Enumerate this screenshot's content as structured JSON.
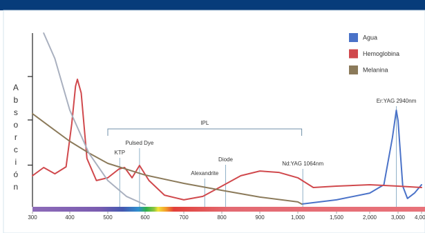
{
  "chart_data": {
    "type": "line",
    "y_label": "Absorción",
    "xticks": [
      300,
      400,
      500,
      600,
      700,
      800,
      900,
      {
        "value": 1000,
        "label": "1,000"
      },
      {
        "value": 1500,
        "label": "1,500"
      },
      {
        "value": 2000,
        "label": "2,000"
      },
      {
        "value": 3000,
        "label": "3,000"
      },
      {
        "value": 4000,
        "label": "4,000"
      }
    ],
    "xlim": [
      300,
      4000
    ],
    "ylim": [
      0,
      100
    ],
    "yticks": [
      24,
      50,
      75
    ],
    "legend": "top-right",
    "series": [
      {
        "name": "Agua",
        "color": "#4a72c8",
        "x": [
          1050,
          1500,
          2000,
          2500,
          2800,
          2940,
          3000,
          3200,
          3400,
          3700,
          4000
        ],
        "values": [
          1.6,
          4,
          7.9,
          12.7,
          39.7,
          55.6,
          49.6,
          11.9,
          4.8,
          7.9,
          12.7
        ]
      },
      {
        "name": "Hemoglobina",
        "color": "#d0484c",
        "x": [
          300,
          330,
          360,
          390,
          405,
          415,
          420,
          430,
          445,
          470,
          500,
          530,
          545,
          565,
          585,
          610,
          650,
          700,
          750,
          800,
          850,
          900,
          950,
          1000,
          1200,
          1500,
          2000,
          2500,
          3000,
          4000
        ],
        "values": [
          17.9,
          22.6,
          19,
          23,
          47.6,
          69.4,
          73.4,
          65.5,
          27.8,
          15.1,
          16.7,
          21.8,
          22.6,
          16.7,
          23.8,
          15.1,
          6.7,
          4,
          6,
          11.9,
          17.9,
          20.6,
          19.8,
          16.7,
          11.1,
          11.9,
          12.7,
          12.3,
          11.9,
          11.1
        ]
      },
      {
        "name": "Melanina",
        "color": "#8b7a5a",
        "x": [
          300,
          350,
          400,
          450,
          500,
          600,
          700,
          800,
          900,
          1000,
          1050
        ],
        "values": [
          53.6,
          45.6,
          37.7,
          31,
          25,
          18.3,
          13.5,
          9.5,
          5.6,
          2.8,
          1.6
        ]
      },
      {
        "color": "#a9b0bf",
        "x": [
          330,
          360,
          400,
          450,
          500,
          550,
          600
        ],
        "values": [
          100,
          85.3,
          55.6,
          31,
          15.1,
          6,
          1.2
        ]
      }
    ],
    "ipl": {
      "label": "IPL",
      "range": [
        500,
        1050
      ]
    },
    "annotations": [
      {
        "text": "KTP",
        "x": 532
      },
      {
        "text": "Pulsed Dye",
        "x": 585
      },
      {
        "text": "Alexandrite",
        "x": 755
      },
      {
        "text": "Diode",
        "x": 810
      },
      {
        "text": "Nd:YAG 1064nm",
        "x": 1064
      },
      {
        "text": "Er:YAG 2940nm",
        "x": 2940
      }
    ]
  }
}
